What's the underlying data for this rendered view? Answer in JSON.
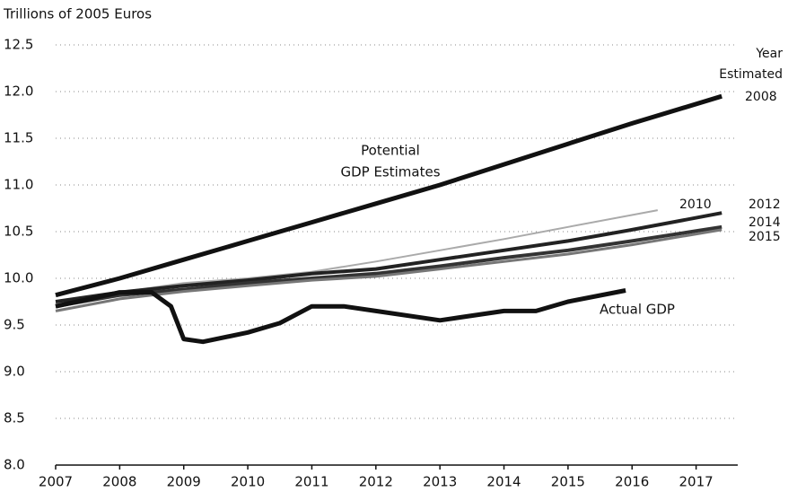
{
  "chart_data": {
    "type": "line",
    "y_axis_label": "Trillions of 2005 Euros",
    "annotations": [
      [
        "Potential",
        "GDP Estimates"
      ],
      [
        "Year",
        "Estimated"
      ]
    ],
    "xlim": [
      2007,
      2017.65
    ],
    "xticks": [
      2007,
      2008,
      2009,
      2010,
      2011,
      2012,
      2013,
      2014,
      2015,
      2016,
      2017
    ],
    "ylim": [
      8,
      12.5
    ],
    "yticks": [
      {
        "value": 8,
        "label": "8.0"
      },
      8.5,
      {
        "value": 9,
        "label": "9.0"
      },
      9.5,
      {
        "value": 10,
        "label": "10.0"
      },
      10.5,
      {
        "value": 11,
        "label": "11.0"
      },
      11.5,
      {
        "value": 12,
        "label": "12.0"
      },
      12.5
    ],
    "grid": true,
    "series": [
      {
        "name": "2008",
        "color": "#111111",
        "x": [
          2007,
          2008,
          2009,
          2010,
          2011,
          2012,
          2013,
          2014,
          2015,
          2016,
          2017.4
        ],
        "values": [
          9.82,
          10.0,
          10.2,
          10.4,
          10.6,
          10.8,
          11.0,
          11.22,
          11.44,
          11.66,
          11.95
        ]
      },
      {
        "name": "2010",
        "color": "#aaaaaa",
        "x": [
          2007,
          2008,
          2009,
          2010,
          2011,
          2012,
          2013,
          2014,
          2015,
          2016.4
        ],
        "values": [
          9.72,
          9.85,
          9.95,
          10.0,
          10.07,
          10.18,
          10.3,
          10.42,
          10.55,
          10.73
        ]
      },
      {
        "name": "2012",
        "color": "#222222",
        "x": [
          2007,
          2008,
          2009,
          2010,
          2011,
          2012,
          2013,
          2014,
          2015,
          2016,
          2017.4
        ],
        "values": [
          9.75,
          9.85,
          9.92,
          9.98,
          10.05,
          10.1,
          10.2,
          10.3,
          10.4,
          10.52,
          10.7
        ]
      },
      {
        "name": "2014",
        "color": "#333333",
        "x": [
          2007,
          2008,
          2009,
          2010,
          2011,
          2012,
          2013,
          2014,
          2015,
          2016,
          2017.4
        ],
        "values": [
          9.7,
          9.82,
          9.88,
          9.95,
          10.0,
          10.05,
          10.13,
          10.22,
          10.3,
          10.4,
          10.55
        ]
      },
      {
        "name": "2015",
        "color": "#777777",
        "x": [
          2007,
          2008,
          2009,
          2010,
          2011,
          2012,
          2013,
          2014,
          2015,
          2016,
          2017.4
        ],
        "values": [
          9.65,
          9.78,
          9.86,
          9.92,
          9.98,
          10.02,
          10.1,
          10.18,
          10.26,
          10.36,
          10.52
        ]
      },
      {
        "name": "Actual GDP",
        "color": "#111111",
        "x": [
          2007,
          2008,
          2008.5,
          2008.8,
          2009,
          2009.3,
          2010,
          2010.5,
          2011,
          2011.5,
          2012,
          2013,
          2014,
          2014.5,
          2015,
          2015.9
        ],
        "values": [
          9.7,
          9.85,
          9.85,
          9.7,
          9.35,
          9.32,
          9.42,
          9.52,
          9.7,
          9.7,
          9.65,
          9.55,
          9.65,
          9.65,
          9.75,
          9.87
        ]
      }
    ]
  }
}
